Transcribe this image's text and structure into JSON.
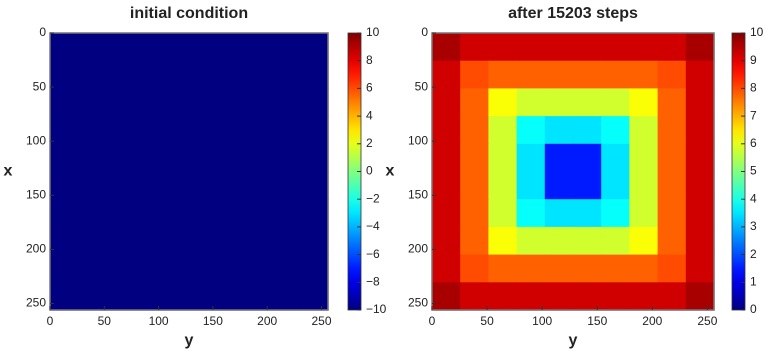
{
  "chart_data": [
    {
      "type": "heatmap",
      "title": "initial condition",
      "x_label": "y",
      "y_label": "x",
      "colormap": "jet",
      "xlim": [
        0,
        256
      ],
      "ylim": [
        256,
        0
      ],
      "xticks": [
        0,
        50,
        100,
        150,
        200,
        250
      ],
      "yticks": [
        0,
        50,
        100,
        150,
        200,
        250
      ],
      "colorbar": {
        "lim": [
          -10,
          10
        ],
        "ticks": [
          {
            "value": -10,
            "label": "−10"
          },
          {
            "value": -8,
            "label": "−8"
          },
          {
            "value": -6,
            "label": "−6"
          },
          {
            "value": -4,
            "label": "−4"
          },
          {
            "value": -2,
            "label": "−2"
          },
          0,
          2,
          4,
          6,
          8,
          10
        ]
      },
      "z": [
        [
          -10,
          -10,
          -10,
          -10,
          -10,
          -10,
          -10,
          -10,
          -10,
          -10
        ],
        [
          -10,
          -10,
          -10,
          -10,
          -10,
          -10,
          -10,
          -10,
          -10,
          -10
        ],
        [
          -10,
          -10,
          -10,
          -10,
          -10,
          -10,
          -10,
          -10,
          -10,
          -10
        ],
        [
          -10,
          -10,
          -10,
          -10,
          -10,
          -10,
          -10,
          -10,
          -10,
          -10
        ],
        [
          -10,
          -10,
          -10,
          -10,
          -10,
          -10,
          -10,
          -10,
          -10,
          -10
        ],
        [
          -10,
          -10,
          -10,
          -10,
          -10,
          -10,
          -10,
          -10,
          -10,
          -10
        ],
        [
          -10,
          -10,
          -10,
          -10,
          -10,
          -10,
          -10,
          -10,
          -10,
          -10
        ],
        [
          -10,
          -10,
          -10,
          -10,
          -10,
          -10,
          -10,
          -10,
          -10,
          -10
        ],
        [
          -10,
          -10,
          -10,
          -10,
          -10,
          -10,
          -10,
          -10,
          -10,
          -10
        ],
        [
          -10,
          -10,
          -10,
          -10,
          -10,
          -10,
          -10,
          -10,
          -10,
          -10
        ]
      ]
    },
    {
      "type": "heatmap",
      "title": "after 15203 steps",
      "x_label": "y",
      "y_label": "x",
      "colormap": "jet",
      "xlim": [
        0,
        256
      ],
      "ylim": [
        256,
        0
      ],
      "xticks": [
        0,
        50,
        100,
        150,
        200,
        250
      ],
      "yticks": [
        0,
        50,
        100,
        150,
        200,
        250
      ],
      "colorbar": {
        "lim": [
          0,
          10
        ],
        "ticks": [
          0,
          1,
          2,
          3,
          4,
          5,
          6,
          7,
          8,
          9,
          10
        ]
      },
      "z": [
        [
          9.6,
          9.2,
          9.2,
          9.2,
          9.2,
          9.2,
          9.2,
          9.2,
          9.2,
          9.6
        ],
        [
          9.2,
          8.0,
          7.8,
          7.8,
          7.8,
          7.8,
          7.8,
          7.8,
          8.0,
          9.2
        ],
        [
          9.2,
          7.8,
          6.2,
          5.8,
          5.8,
          5.8,
          5.8,
          6.2,
          7.8,
          9.2
        ],
        [
          9.2,
          7.8,
          5.8,
          3.8,
          3.5,
          3.5,
          3.8,
          5.8,
          7.8,
          9.2
        ],
        [
          9.2,
          7.8,
          5.8,
          3.5,
          1.5,
          1.5,
          3.5,
          5.8,
          7.8,
          9.2
        ],
        [
          9.2,
          7.8,
          5.8,
          3.5,
          1.5,
          1.5,
          3.5,
          5.8,
          7.8,
          9.2
        ],
        [
          9.2,
          7.8,
          5.8,
          3.8,
          3.5,
          3.5,
          3.8,
          5.8,
          7.8,
          9.2
        ],
        [
          9.2,
          7.8,
          6.2,
          5.8,
          5.8,
          5.8,
          5.8,
          6.2,
          7.8,
          9.2
        ],
        [
          9.2,
          8.0,
          7.8,
          7.8,
          7.8,
          7.8,
          7.8,
          7.8,
          8.0,
          9.2
        ],
        [
          9.6,
          9.2,
          9.2,
          9.2,
          9.2,
          9.2,
          9.2,
          9.2,
          9.2,
          9.6
        ]
      ]
    }
  ]
}
